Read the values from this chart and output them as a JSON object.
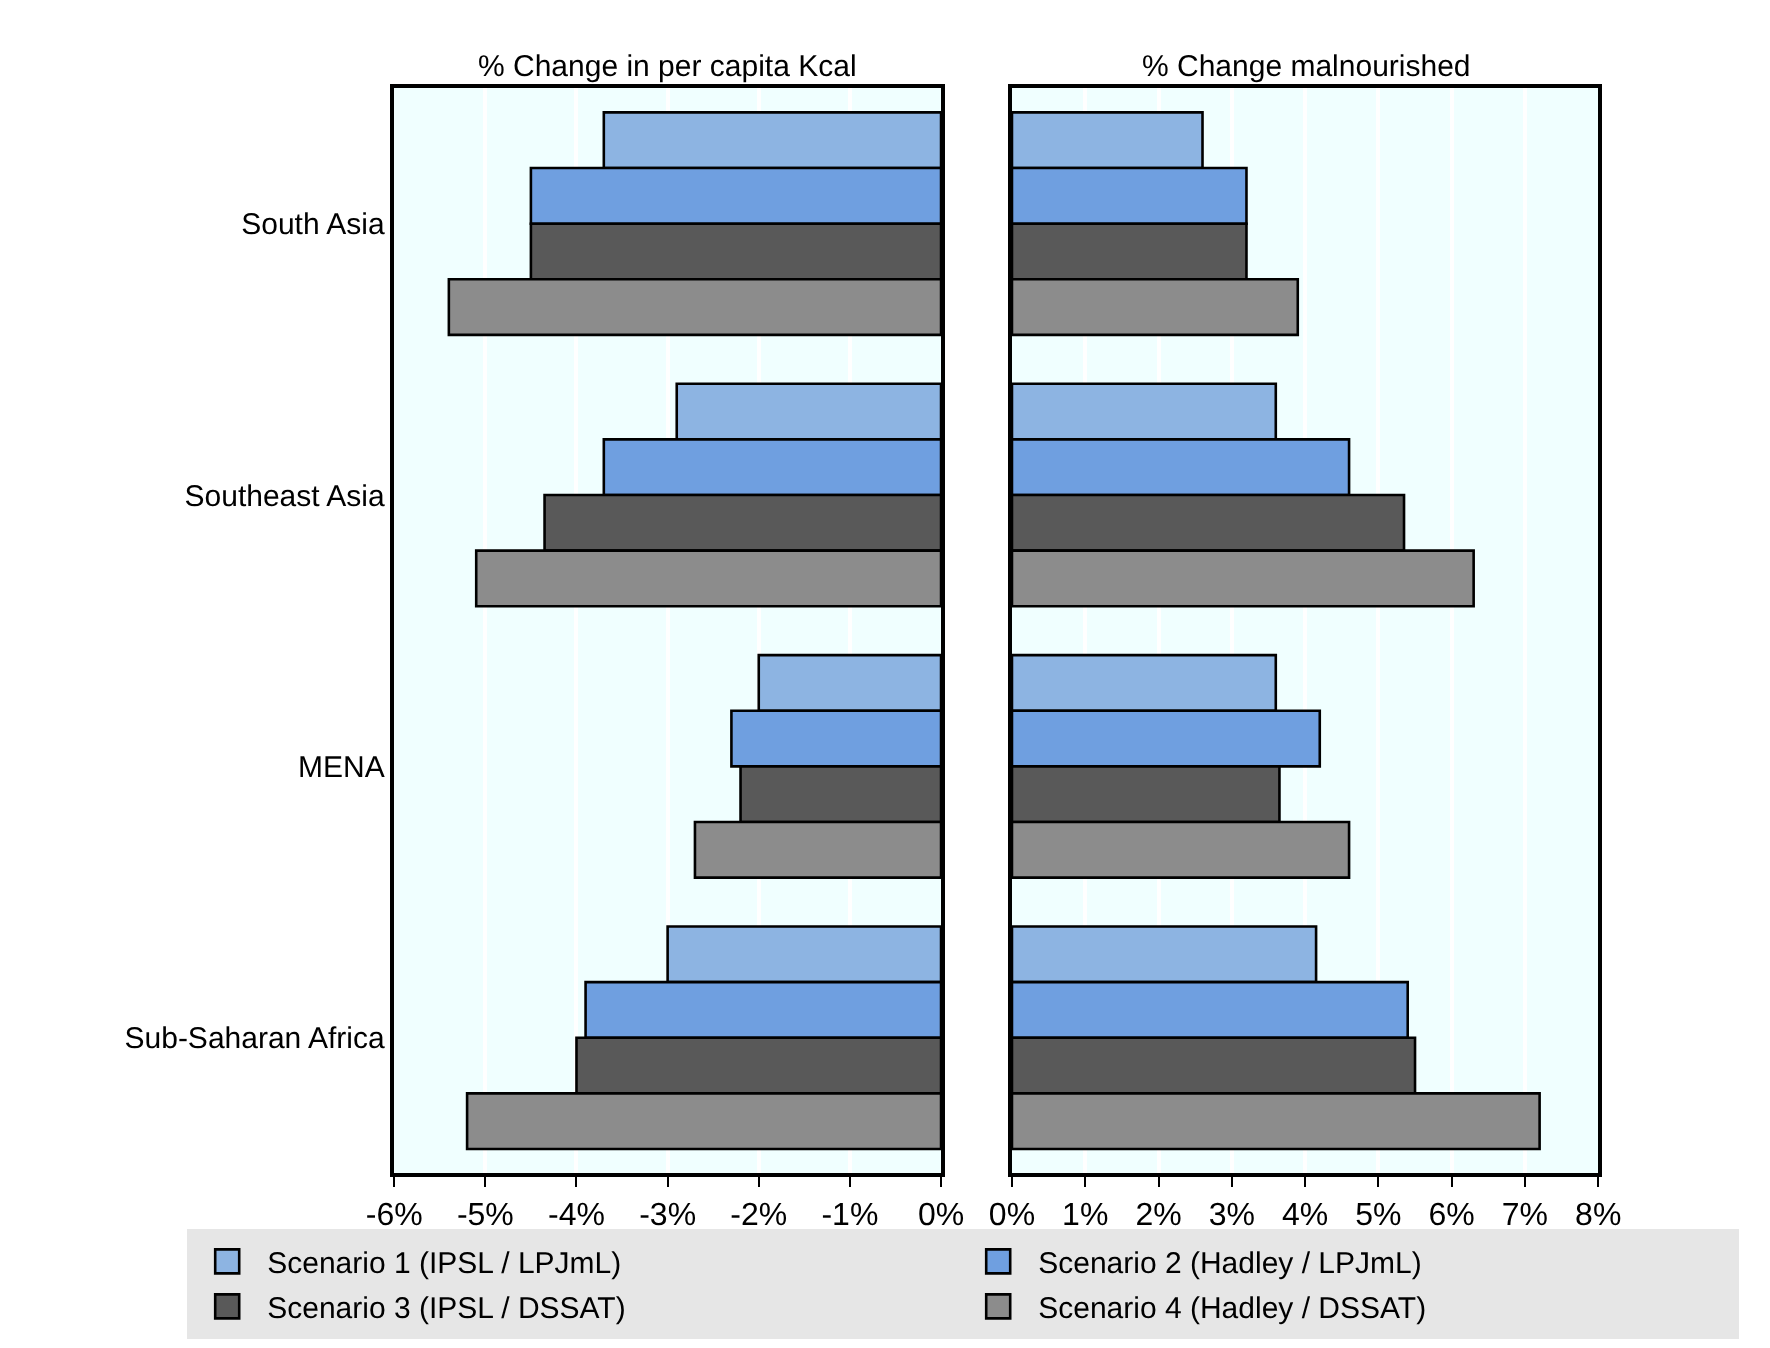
{
  "chart_data": [
    {
      "type": "bar",
      "orientation": "horizontal",
      "title": "% Change in per capita Kcal",
      "categories": [
        "South Asia",
        "Southeast Asia",
        "MENA",
        "Sub-Saharan Africa"
      ],
      "series": [
        {
          "name": "Scenario 1 (IPSL / LPJmL)",
          "color": "#8db4e2",
          "values": [
            -3.7,
            -2.9,
            -2.0,
            -3.0
          ]
        },
        {
          "name": "Scenario 2 (Hadley / LPJmL)",
          "color": "#6f9fe0",
          "values": [
            -4.5,
            -3.7,
            -2.3,
            -3.9
          ]
        },
        {
          "name": "Scenario 3 (IPSL / DSSAT)",
          "color": "#595959",
          "values": [
            -4.5,
            -4.35,
            -2.2,
            -4.0
          ]
        },
        {
          "name": "Scenario 4 (Hadley / DSSAT)",
          "color": "#8c8c8c",
          "values": [
            -5.4,
            -5.1,
            -2.7,
            -5.2
          ]
        }
      ],
      "xlim": [
        -6,
        0
      ],
      "xticks": [
        {
          "value": -6,
          "label": "-6%"
        },
        {
          "value": -5,
          "label": "-5%"
        },
        {
          "value": -4,
          "label": "-4%"
        },
        {
          "value": -3,
          "label": "-3%"
        },
        {
          "value": -2,
          "label": "-2%"
        },
        {
          "value": -1,
          "label": "-1%"
        },
        {
          "value": 0,
          "label": "0%"
        }
      ],
      "grid": "x",
      "legend": "bottom"
    },
    {
      "type": "bar",
      "orientation": "horizontal",
      "title": "% Change malnourished",
      "categories": [
        "South Asia",
        "Southeast Asia",
        "MENA",
        "Sub-Saharan Africa"
      ],
      "series": [
        {
          "color": "#8db4e2",
          "values": [
            2.6,
            3.6,
            3.6,
            4.15
          ]
        },
        {
          "color": "#6f9fe0",
          "values": [
            3.2,
            4.6,
            4.2,
            5.4
          ]
        },
        {
          "color": "#595959",
          "values": [
            3.2,
            5.35,
            3.65,
            5.5
          ]
        },
        {
          "color": "#8c8c8c",
          "values": [
            3.9,
            6.3,
            4.6,
            7.2
          ]
        }
      ],
      "xlim": [
        0,
        8
      ],
      "xticks": [
        {
          "value": 0,
          "label": "0%"
        },
        {
          "value": 1,
          "label": "1%"
        },
        {
          "value": 2,
          "label": "2%"
        },
        {
          "value": 3,
          "label": "3%"
        },
        {
          "value": 4,
          "label": "4%"
        },
        {
          "value": 5,
          "label": "5%"
        },
        {
          "value": 6,
          "label": "6%"
        },
        {
          "value": 7,
          "label": "7%"
        },
        {
          "value": 8,
          "label": "8%"
        }
      ],
      "grid": "x",
      "legend": "bottom",
      "tick_labels": "x"
    }
  ]
}
